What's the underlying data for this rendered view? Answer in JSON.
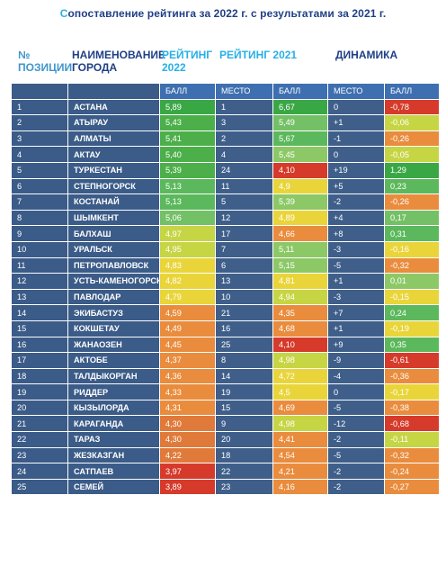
{
  "title": {
    "caret": "С",
    "text": "опоставление рейтинга за 2022 г. с результатами за 2021 г."
  },
  "header": {
    "pos_line1": "№",
    "pos_line2": "позиции",
    "name_line1": "Наименование",
    "name_line2": "города",
    "r22_line1": "Рейтинг",
    "r22_line2": "2022",
    "r21": "Рейтинг 2021",
    "dyn": "Динамика"
  },
  "subheader": {
    "score22": "Балл",
    "place21": "Место",
    "score21": "Балл",
    "place_dyn": "Место",
    "score_dyn": "Балл"
  },
  "colors": {
    "dark_green": "#3aa745",
    "green": "#5cb85c",
    "light_green": "#8dc867",
    "yellow_green": "#c6d544",
    "yellow": "#e9d53a",
    "orange": "#e98c3d",
    "red": "#d63a2a",
    "navy": "#3b5b88"
  },
  "rows": [
    {
      "pos": "1",
      "city": "Астана",
      "s22": "5,89",
      "p21": "1",
      "s21": "6,67",
      "dp": "0",
      "ds": "-0,78"
    },
    {
      "pos": "2",
      "city": "Атырау",
      "s22": "5,43",
      "p21": "3",
      "s21": "5,49",
      "dp": "+1",
      "ds": "-0,06"
    },
    {
      "pos": "3",
      "city": "Алматы",
      "s22": "5,41",
      "p21": "2",
      "s21": "5,67",
      "dp": "-1",
      "ds": "-0,26"
    },
    {
      "pos": "4",
      "city": "Актау",
      "s22": "5,40",
      "p21": "4",
      "s21": "5,45",
      "dp": "0",
      "ds": "-0,05"
    },
    {
      "pos": "5",
      "city": "Туркестан",
      "s22": "5,39",
      "p21": "24",
      "s21": "4,10",
      "dp": "+19",
      "ds": "1,29"
    },
    {
      "pos": "6",
      "city": "Степногорск",
      "s22": "5,13",
      "p21": "11",
      "s21": "4,9",
      "dp": "+5",
      "ds": "0,23"
    },
    {
      "pos": "7",
      "city": "Костанай",
      "s22": "5,13",
      "p21": "5",
      "s21": "5,39",
      "dp": "-2",
      "ds": "-0,26"
    },
    {
      "pos": "8",
      "city": "Шымкент",
      "s22": "5,06",
      "p21": "12",
      "s21": "4,89",
      "dp": "+4",
      "ds": "0,17"
    },
    {
      "pos": "9",
      "city": "Балхаш",
      "s22": "4,97",
      "p21": "17",
      "s21": "4,66",
      "dp": "+8",
      "ds": "0,31"
    },
    {
      "pos": "10",
      "city": "Уральск",
      "s22": "4,95",
      "p21": "7",
      "s21": "5,11",
      "dp": "-3",
      "ds": "-0,16"
    },
    {
      "pos": "11",
      "city": "Петропавловск",
      "s22": "4,83",
      "p21": "6",
      "s21": "5,15",
      "dp": "-5",
      "ds": "-0,32"
    },
    {
      "pos": "12",
      "city": "Усть-Каменогорск",
      "s22": "4,82",
      "p21": "13",
      "s21": "4,81",
      "dp": "+1",
      "ds": "0,01"
    },
    {
      "pos": "13",
      "city": "Павлодар",
      "s22": "4,79",
      "p21": "10",
      "s21": "4,94",
      "dp": "-3",
      "ds": "-0,15"
    },
    {
      "pos": "14",
      "city": "Экибастуз",
      "s22": "4,59",
      "p21": "21",
      "s21": "4,35",
      "dp": "+7",
      "ds": "0,24"
    },
    {
      "pos": "15",
      "city": "Кокшетау",
      "s22": "4,49",
      "p21": "16",
      "s21": "4,68",
      "dp": "+1",
      "ds": "-0,19"
    },
    {
      "pos": "16",
      "city": "Жанаозен",
      "s22": "4,45",
      "p21": "25",
      "s21": "4,10",
      "dp": "+9",
      "ds": "0,35"
    },
    {
      "pos": "17",
      "city": "Актобе",
      "s22": "4,37",
      "p21": "8",
      "s21": "4,98",
      "dp": "-9",
      "ds": "-0,61"
    },
    {
      "pos": "18",
      "city": "Талдыкорган",
      "s22": "4,36",
      "p21": "14",
      "s21": "4,72",
      "dp": "-4",
      "ds": "-0,36"
    },
    {
      "pos": "19",
      "city": "Риддер",
      "s22": "4,33",
      "p21": "19",
      "s21": "4,5",
      "dp": "0",
      "ds": "-0,17"
    },
    {
      "pos": "20",
      "city": "Кызылорда",
      "s22": "4,31",
      "p21": "15",
      "s21": "4,69",
      "dp": "-5",
      "ds": "-0,38"
    },
    {
      "pos": "21",
      "city": "Караганда",
      "s22": "4,30",
      "p21": "9",
      "s21": "4,98",
      "dp": "-12",
      "ds": "-0,68"
    },
    {
      "pos": "22",
      "city": "Тараз",
      "s22": "4,30",
      "p21": "20",
      "s21": "4,41",
      "dp": "-2",
      "ds": "-0,11"
    },
    {
      "pos": "23",
      "city": "Жезказган",
      "s22": "4,22",
      "p21": "18",
      "s21": "4,54",
      "dp": "-5",
      "ds": "-0,32"
    },
    {
      "pos": "24",
      "city": "Сатпаев",
      "s22": "3,97",
      "p21": "22",
      "s21": "4,21",
      "dp": "-2",
      "ds": "-0,24"
    },
    {
      "pos": "25",
      "city": "Семей",
      "s22": "3,89",
      "p21": "23",
      "s21": "4,16",
      "dp": "-2",
      "ds": "-0,27"
    }
  ],
  "cell_colors": {
    "s22": [
      "#3aa745",
      "#4caf4a",
      "#4caf4a",
      "#4caf4a",
      "#4caf4a",
      "#5cb85c",
      "#5cb85c",
      "#74c066",
      "#c6d544",
      "#c6d544",
      "#e9d53a",
      "#e9d53a",
      "#e9d53a",
      "#e98c3d",
      "#e98c3d",
      "#e98c3d",
      "#e98c3d",
      "#e98c3d",
      "#e98c3d",
      "#e98c3d",
      "#e07a3a",
      "#e07a3a",
      "#e07a3a",
      "#d63a2a",
      "#d63a2a"
    ],
    "s21": [
      "#3aa745",
      "#74c066",
      "#5cb85c",
      "#8dc867",
      "#d63a2a",
      "#e9d53a",
      "#8dc867",
      "#e9d53a",
      "#e98c3d",
      "#8dc867",
      "#8dc867",
      "#e9d53a",
      "#c6d544",
      "#e98c3d",
      "#e98c3d",
      "#d63a2a",
      "#c6d544",
      "#e9d53a",
      "#e9d53a",
      "#e98c3d",
      "#c6d544",
      "#e98c3d",
      "#e98c3d",
      "#e98c3d",
      "#e98c3d"
    ],
    "ds": [
      "#d63a2a",
      "#c6d544",
      "#e98c3d",
      "#c6d544",
      "#3aa745",
      "#5cb85c",
      "#e98c3d",
      "#74c066",
      "#5cb85c",
      "#e9d53a",
      "#e98c3d",
      "#8dc867",
      "#e9d53a",
      "#5cb85c",
      "#e9d53a",
      "#5cb85c",
      "#d63a2a",
      "#e98c3d",
      "#e9d53a",
      "#e98c3d",
      "#d63a2a",
      "#c6d544",
      "#e98c3d",
      "#e98c3d",
      "#e98c3d"
    ]
  }
}
